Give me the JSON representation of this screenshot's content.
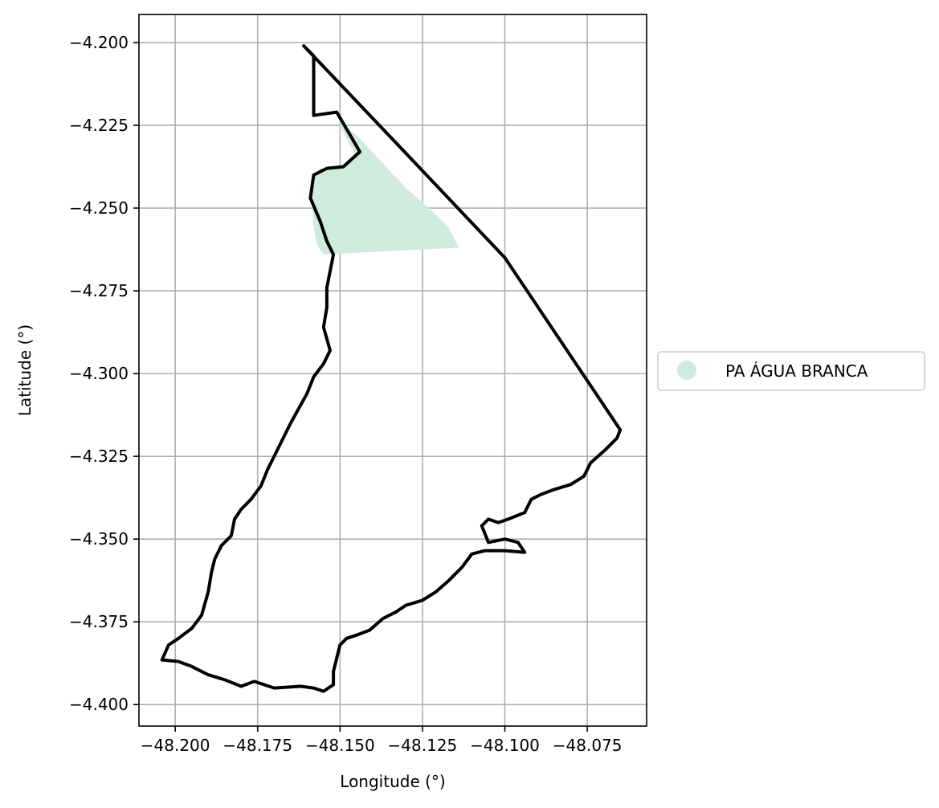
{
  "chart_data": {
    "type": "map",
    "xlabel": "Longitude (°)",
    "ylabel": "Latitude (°)",
    "xlim": [
      -48.211,
      -48.057
    ],
    "ylim": [
      -4.4065,
      -4.1915
    ],
    "x_ticks": [
      -48.2,
      -48.175,
      -48.15,
      -48.125,
      -48.1,
      -48.075
    ],
    "x_tick_labels": [
      "−48.200",
      "−48.175",
      "−48.150",
      "−48.125",
      "−48.100",
      "−48.075"
    ],
    "y_ticks": [
      -4.2,
      -4.225,
      -4.25,
      -4.275,
      -4.3,
      -4.325,
      -4.35,
      -4.375,
      -4.4
    ],
    "y_tick_labels": [
      "−4.200",
      "−4.225",
      "−4.250",
      "−4.275",
      "−4.300",
      "−4.325",
      "−4.350",
      "−4.375",
      "−4.400"
    ],
    "grid": true,
    "legend": {
      "placement": "center-right outside",
      "entries": [
        {
          "label": "PA ÁGUA BRANCA",
          "color": "#cfebdd",
          "marker": "circle"
        }
      ]
    },
    "colors": {
      "boundary": "#000000",
      "settlement_fill": "#cfebdd",
      "grid": "#b0b0b0"
    },
    "settlement_polygon": [
      [
        -48.1505,
        -4.221
      ],
      [
        -48.148,
        -4.2255
      ],
      [
        -48.144,
        -4.229
      ],
      [
        -48.1375,
        -4.236
      ],
      [
        -48.13,
        -4.244
      ],
      [
        -48.123,
        -4.25
      ],
      [
        -48.117,
        -4.256
      ],
      [
        -48.114,
        -4.262
      ],
      [
        -48.135,
        -4.263
      ],
      [
        -48.155,
        -4.264
      ],
      [
        -48.157,
        -4.261
      ],
      [
        -48.158,
        -4.256
      ],
      [
        -48.1585,
        -4.25
      ],
      [
        -48.159,
        -4.245
      ],
      [
        -48.158,
        -4.24
      ],
      [
        -48.156,
        -4.238
      ],
      [
        -48.151,
        -4.238
      ],
      [
        -48.147,
        -4.236
      ],
      [
        -48.1455,
        -4.2335
      ],
      [
        -48.147,
        -4.231
      ],
      [
        -48.15,
        -4.225
      ]
    ],
    "boundary_polygon": [
      [
        -48.161,
        -4.201
      ],
      [
        -48.129,
        -4.2345
      ],
      [
        -48.1,
        -4.265
      ],
      [
        -48.065,
        -4.317
      ],
      [
        -48.066,
        -4.3195
      ],
      [
        -48.0695,
        -4.323
      ],
      [
        -48.074,
        -4.327
      ],
      [
        -48.076,
        -4.331
      ],
      [
        -48.08,
        -4.3335
      ],
      [
        -48.085,
        -4.335
      ],
      [
        -48.089,
        -4.3365
      ],
      [
        -48.092,
        -4.338
      ],
      [
        -48.094,
        -4.342
      ],
      [
        -48.099,
        -4.344
      ],
      [
        -48.102,
        -4.345
      ],
      [
        -48.105,
        -4.344
      ],
      [
        -48.107,
        -4.346
      ],
      [
        -48.105,
        -4.351
      ],
      [
        -48.1,
        -4.35
      ],
      [
        -48.096,
        -4.351
      ],
      [
        -48.094,
        -4.354
      ],
      [
        -48.1,
        -4.3535
      ],
      [
        -48.106,
        -4.3535
      ],
      [
        -48.11,
        -4.3545
      ],
      [
        -48.113,
        -4.3585
      ],
      [
        -48.117,
        -4.3625
      ],
      [
        -48.121,
        -4.366
      ],
      [
        -48.125,
        -4.3685
      ],
      [
        -48.13,
        -4.37
      ],
      [
        -48.133,
        -4.372
      ],
      [
        -48.137,
        -4.374
      ],
      [
        -48.141,
        -4.3775
      ],
      [
        -48.145,
        -4.379
      ],
      [
        -48.148,
        -4.38
      ],
      [
        -48.15,
        -4.382
      ],
      [
        -48.151,
        -4.386
      ],
      [
        -48.152,
        -4.39
      ],
      [
        -48.152,
        -4.394
      ],
      [
        -48.155,
        -4.396
      ],
      [
        -48.158,
        -4.395
      ],
      [
        -48.162,
        -4.3945
      ],
      [
        -48.17,
        -4.395
      ],
      [
        -48.176,
        -4.393
      ],
      [
        -48.18,
        -4.3945
      ],
      [
        -48.185,
        -4.3925
      ],
      [
        -48.19,
        -4.391
      ],
      [
        -48.195,
        -4.3885
      ],
      [
        -48.199,
        -4.387
      ],
      [
        -48.204,
        -4.3865
      ],
      [
        -48.202,
        -4.382
      ],
      [
        -48.199,
        -4.38
      ],
      [
        -48.195,
        -4.377
      ],
      [
        -48.192,
        -4.373
      ],
      [
        -48.19,
        -4.366
      ],
      [
        -48.189,
        -4.36
      ],
      [
        -48.188,
        -4.356
      ],
      [
        -48.186,
        -4.352
      ],
      [
        -48.183,
        -4.349
      ],
      [
        -48.182,
        -4.344
      ],
      [
        -48.18,
        -4.341
      ],
      [
        -48.177,
        -4.338
      ],
      [
        -48.174,
        -4.334
      ],
      [
        -48.172,
        -4.329
      ],
      [
        -48.169,
        -4.323
      ],
      [
        -48.165,
        -4.315
      ],
      [
        -48.16,
        -4.306
      ],
      [
        -48.158,
        -4.301
      ],
      [
        -48.155,
        -4.297
      ],
      [
        -48.153,
        -4.293
      ],
      [
        -48.155,
        -4.286
      ],
      [
        -48.154,
        -4.28
      ],
      [
        -48.154,
        -4.274
      ],
      [
        -48.153,
        -4.269
      ],
      [
        -48.152,
        -4.264
      ],
      [
        -48.154,
        -4.26
      ],
      [
        -48.156,
        -4.254
      ],
      [
        -48.159,
        -4.247
      ],
      [
        -48.158,
        -4.24
      ],
      [
        -48.154,
        -4.238
      ],
      [
        -48.149,
        -4.2375
      ],
      [
        -48.144,
        -4.233
      ],
      [
        -48.151,
        -4.221
      ],
      [
        -48.158,
        -4.222
      ],
      [
        -48.158,
        -4.204
      ],
      [
        -48.161,
        -4.201
      ]
    ]
  }
}
